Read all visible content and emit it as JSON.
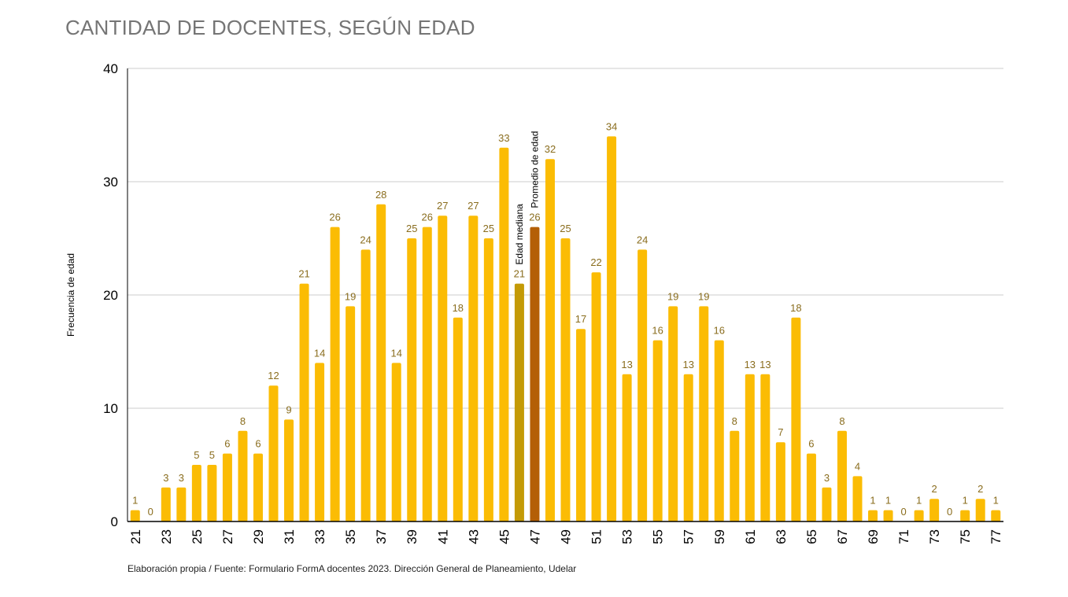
{
  "title": "CANTIDAD DE DOCENTES, SEGÚN EDAD",
  "footnote": "Elaboración propia / Fuente: Formulario FormA docentes 2023. Dirección General de Planeamiento, Udelar",
  "colors": {
    "bar": "#FBBC04",
    "median": "#C49A06",
    "mean": "#B45F06",
    "data_label": "#8A6D1E",
    "grid": "#CCCCCC",
    "axis": "#000000"
  },
  "chart_data": {
    "type": "bar",
    "title": "CANTIDAD DE DOCENTES, SEGÚN EDAD",
    "xlabel": "",
    "ylabel": "Frecuencia de edad",
    "ylim": [
      0,
      40
    ],
    "yticks": [
      0,
      10,
      20,
      30,
      40
    ],
    "grid": true,
    "categories": [
      21,
      22,
      23,
      24,
      25,
      26,
      27,
      28,
      29,
      30,
      31,
      32,
      33,
      34,
      35,
      36,
      37,
      38,
      39,
      40,
      41,
      42,
      43,
      44,
      45,
      46,
      47,
      48,
      49,
      50,
      51,
      52,
      53,
      54,
      55,
      56,
      57,
      58,
      59,
      60,
      61,
      62,
      63,
      64,
      65,
      66,
      67,
      68,
      69,
      70,
      71,
      72,
      73,
      74,
      75,
      76,
      77
    ],
    "xtick_labels": [
      21,
      23,
      25,
      27,
      29,
      31,
      33,
      35,
      37,
      39,
      41,
      43,
      45,
      47,
      49,
      51,
      53,
      55,
      57,
      59,
      61,
      63,
      65,
      67,
      69,
      71,
      73,
      75,
      77
    ],
    "values": [
      1,
      0,
      3,
      3,
      5,
      5,
      6,
      8,
      6,
      12,
      9,
      21,
      14,
      26,
      19,
      24,
      28,
      14,
      25,
      26,
      27,
      18,
      27,
      25,
      33,
      21,
      26,
      32,
      25,
      17,
      22,
      34,
      13,
      24,
      16,
      19,
      13,
      19,
      16,
      8,
      13,
      13,
      7,
      18,
      6,
      3,
      8,
      4,
      1,
      1,
      0,
      1,
      2,
      0,
      1,
      2,
      1
    ],
    "highlights": [
      {
        "category": 46,
        "label": "Edad mediana",
        "color_key": "median"
      },
      {
        "category": 47,
        "label": "Promedio de edad",
        "color_key": "mean"
      }
    ]
  }
}
